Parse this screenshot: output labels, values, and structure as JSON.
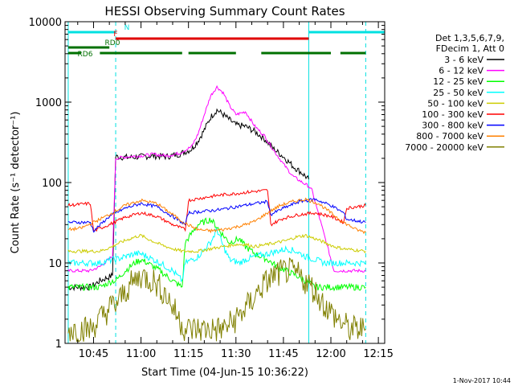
{
  "chart_data": {
    "type": "line",
    "title": "HESSI Observing Summary Count Rates",
    "xlabel": "Start Time (04-Jun-15 10:36:22)",
    "ylabel": "Count Rate (s⁻¹ detector⁻¹)",
    "x_range": [
      "10:36",
      "12:17"
    ],
    "xticks": [
      "10:45",
      "11:00",
      "11:15",
      "11:30",
      "11:45",
      "12:00",
      "12:15"
    ],
    "y_scale": "log",
    "ylim": [
      1,
      10000
    ],
    "yticks": [
      "1",
      "10",
      "100",
      "1000",
      "10000"
    ],
    "grid": false,
    "legend": {
      "placement": "right",
      "header": [
        "Det 1,3,5,6,7,9,",
        "FDecim 1, Att 0"
      ]
    },
    "series": [
      {
        "name": "3 - 6 keV",
        "color": "#000000",
        "x": [
          "10:37",
          "10:44",
          "10:47",
          "10:51",
          "10:52",
          "10:56",
          "11:00",
          "11:04",
          "11:08",
          "11:12",
          "11:16",
          "11:18",
          "11:20",
          "11:22",
          "11:24",
          "11:26",
          "11:28",
          "11:30",
          "11:33",
          "11:36",
          "11:39",
          "11:42",
          "11:45",
          "11:48",
          "11:51",
          "11:53"
        ],
        "y": [
          5,
          5,
          6,
          7,
          210,
          205,
          210,
          215,
          210,
          225,
          260,
          330,
          450,
          650,
          800,
          700,
          600,
          520,
          500,
          430,
          350,
          260,
          210,
          160,
          130,
          110
        ]
      },
      {
        "name": "6 - 12 keV",
        "color": "#ff00ff",
        "x": [
          "10:37",
          "10:44",
          "10:47",
          "10:51",
          "10:52",
          "10:56",
          "11:00",
          "11:04",
          "11:08",
          "11:12",
          "11:16",
          "11:18",
          "11:20",
          "11:22",
          "11:24",
          "11:26",
          "11:28",
          "11:30",
          "11:33",
          "11:36",
          "11:39",
          "11:42",
          "11:45",
          "11:48",
          "11:51",
          "11:53",
          "11:54",
          "12:01",
          "12:04",
          "12:11"
        ],
        "y": [
          8,
          8,
          9,
          12,
          200,
          210,
          215,
          225,
          215,
          230,
          280,
          400,
          700,
          1200,
          1550,
          1300,
          900,
          700,
          760,
          500,
          380,
          250,
          170,
          120,
          100,
          90,
          80,
          8,
          8,
          8
        ]
      },
      {
        "name": "12 - 25 keV",
        "color": "#00ff00",
        "x": [
          "10:37",
          "10:44",
          "10:47",
          "10:51",
          "10:52",
          "10:55",
          "10:58",
          "11:00",
          "11:02",
          "11:06",
          "11:10",
          "11:13",
          "11:14",
          "11:18",
          "11:22",
          "11:24",
          "11:26",
          "11:28",
          "11:31",
          "11:33",
          "11:36",
          "11:40",
          "11:43",
          "11:46",
          "11:49",
          "11:52",
          "11:55",
          "11:58",
          "12:01",
          "12:04",
          "12:11"
        ],
        "y": [
          5,
          5,
          5,
          6,
          6,
          8,
          10,
          11,
          10,
          8,
          6,
          5,
          18,
          30,
          35,
          28,
          22,
          18,
          20,
          16,
          13,
          11,
          9,
          8,
          7,
          6,
          5,
          5,
          5,
          5,
          5
        ]
      },
      {
        "name": "25 - 50 keV",
        "color": "#00ffff",
        "x": [
          "10:37",
          "10:44",
          "10:47",
          "10:51",
          "10:52",
          "10:55",
          "10:58",
          "11:00",
          "11:02",
          "11:06",
          "11:10",
          "11:13",
          "11:14",
          "11:18",
          "11:22",
          "11:24",
          "11:26",
          "11:28",
          "11:31",
          "11:33",
          "11:36",
          "11:40",
          "11:43",
          "11:46",
          "11:49",
          "11:52",
          "11:55",
          "11:58",
          "12:01",
          "12:04",
          "12:11"
        ],
        "y": [
          10,
          10,
          10,
          11,
          11,
          12,
          13,
          13,
          12,
          10,
          8,
          6,
          10,
          12,
          18,
          26,
          16,
          11,
          10,
          11,
          12,
          13,
          14,
          15,
          14,
          12,
          11,
          10,
          10,
          10,
          10
        ]
      },
      {
        "name": "50 - 100 keV",
        "color": "#cccc00",
        "x": [
          "10:37",
          "10:44",
          "10:47",
          "10:51",
          "10:52",
          "10:55",
          "10:58",
          "11:00",
          "11:02",
          "11:06",
          "11:10",
          "11:13",
          "11:14",
          "11:18",
          "11:22",
          "11:26",
          "11:30",
          "11:33",
          "11:36",
          "11:40",
          "11:43",
          "11:46",
          "11:49",
          "11:52",
          "11:55",
          "11:58",
          "12:01",
          "12:04",
          "12:11"
        ],
        "y": [
          14,
          14,
          14,
          16,
          17,
          19,
          21,
          22,
          20,
          17,
          15,
          14,
          14,
          14,
          15,
          16,
          17,
          17,
          16,
          17,
          18,
          19,
          21,
          22,
          20,
          18,
          16,
          15,
          14
        ]
      },
      {
        "name": "100 - 300 keV",
        "color": "#ff0000",
        "x": [
          "10:37",
          "10:44",
          "10:45",
          "10:50",
          "10:55",
          "11:00",
          "11:05",
          "11:10",
          "11:14",
          "11:15",
          "11:20",
          "11:25",
          "11:30",
          "11:35",
          "11:40",
          "11:41",
          "11:45",
          "11:50",
          "11:55",
          "12:00",
          "12:04",
          "12:05",
          "12:11"
        ],
        "y": [
          52,
          55,
          25,
          30,
          37,
          42,
          38,
          30,
          26,
          60,
          65,
          70,
          73,
          77,
          80,
          30,
          36,
          40,
          42,
          38,
          32,
          48,
          52
        ]
      },
      {
        "name": "300 - 800 keV",
        "color": "#0000ff",
        "x": [
          "10:37",
          "10:44",
          "10:45",
          "10:50",
          "10:55",
          "11:00",
          "11:05",
          "11:10",
          "11:14",
          "11:15",
          "11:20",
          "11:25",
          "11:30",
          "11:35",
          "11:40",
          "11:41",
          "11:45",
          "11:50",
          "11:55",
          "12:00",
          "12:04",
          "12:05",
          "12:11"
        ],
        "y": [
          32,
          32,
          25,
          38,
          48,
          55,
          50,
          38,
          30,
          42,
          44,
          46,
          50,
          54,
          58,
          40,
          48,
          58,
          62,
          52,
          42,
          35,
          32
        ]
      },
      {
        "name": "800 - 7000 keV",
        "color": "#ff8000",
        "x": [
          "10:37",
          "10:41",
          "10:45",
          "10:50",
          "10:55",
          "11:00",
          "11:05",
          "11:10",
          "11:14",
          "11:18",
          "11:22",
          "11:26",
          "11:30",
          "11:33",
          "11:36",
          "11:40",
          "11:44",
          "11:48",
          "11:52",
          "11:56",
          "12:00",
          "12:04",
          "12:08",
          "12:11"
        ],
        "y": [
          26,
          27,
          32,
          40,
          52,
          60,
          55,
          40,
          31,
          26,
          25,
          26,
          28,
          30,
          33,
          42,
          52,
          58,
          62,
          55,
          42,
          32,
          26,
          24
        ]
      },
      {
        "name": "7000 - 20000 keV",
        "color": "#808000",
        "x": [
          "10:37",
          "10:44",
          "10:47",
          "10:51",
          "10:52",
          "10:56",
          "11:00",
          "11:04",
          "11:08",
          "11:12",
          "11:14",
          "11:18",
          "11:22",
          "11:26",
          "11:30",
          "11:34",
          "11:38",
          "11:42",
          "11:46",
          "11:50",
          "11:54",
          "11:58",
          "12:02",
          "12:06",
          "12:11"
        ],
        "y": [
          1.5,
          1.5,
          2,
          3,
          3,
          5,
          7,
          6,
          4,
          2,
          1.5,
          1.5,
          1.5,
          1.5,
          2,
          3,
          5,
          7,
          8,
          7,
          5,
          3,
          2,
          1.5,
          1.5
        ]
      }
    ],
    "annotations": [
      {
        "label": "N",
        "color": "#00e0e0",
        "segments": [
          [
            "10:37",
            "10:52"
          ],
          [
            "11:53",
            "12:17"
          ]
        ]
      },
      {
        "label": "F",
        "color": "#e00000",
        "segments": [
          [
            "10:52",
            "11:53"
          ]
        ]
      },
      {
        "label": "RD0",
        "color": "#007000",
        "segments": [
          [
            "10:37",
            "10:50"
          ]
        ]
      },
      {
        "label": "RD6",
        "color": "#007000",
        "segments": [
          [
            "10:37",
            "10:41"
          ],
          [
            "10:47",
            "11:13"
          ],
          [
            "11:15",
            "11:30"
          ],
          [
            "11:38",
            "12:00"
          ],
          [
            "12:03",
            "12:11"
          ]
        ]
      }
    ],
    "vertical_markers": [
      {
        "time": "10:37",
        "color": "#00e0e0",
        "style": "solid"
      },
      {
        "time": "10:52",
        "color": "#00e0e0",
        "style": "dashed"
      },
      {
        "time": "11:53",
        "color": "#00e0e0",
        "style": "solid"
      },
      {
        "time": "12:11",
        "color": "#00e0e0",
        "style": "dashed"
      }
    ],
    "footer": "1-Nov-2017 10:44"
  }
}
